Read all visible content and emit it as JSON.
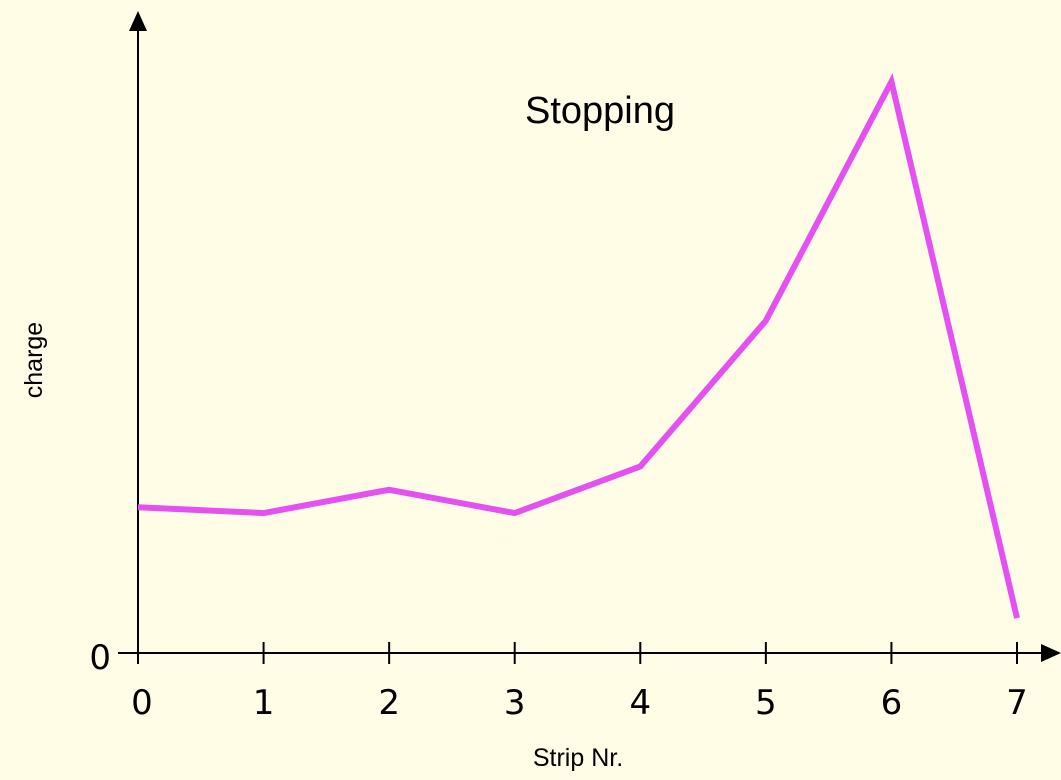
{
  "colors": {
    "background": "#FFFDE6",
    "axis": "#000000",
    "series": "#E550F0"
  },
  "chart_data": {
    "type": "line",
    "title": "",
    "annotation": "Stopping",
    "xlabel": "Strip Nr.",
    "ylabel": "charge",
    "x": [
      0,
      1,
      2,
      3,
      4,
      5,
      6,
      7
    ],
    "xticks": [
      "0",
      "1",
      "2",
      "3",
      "4",
      "5",
      "6",
      "7"
    ],
    "yticks": [
      "0"
    ],
    "xlim": [
      0,
      7
    ],
    "ylim": [
      0,
      1
    ],
    "grid": false,
    "legend": "none",
    "series": [
      {
        "values": [
          0.25,
          0.24,
          0.28,
          0.24,
          0.32,
          0.57,
          0.98,
          0.06
        ]
      }
    ]
  }
}
